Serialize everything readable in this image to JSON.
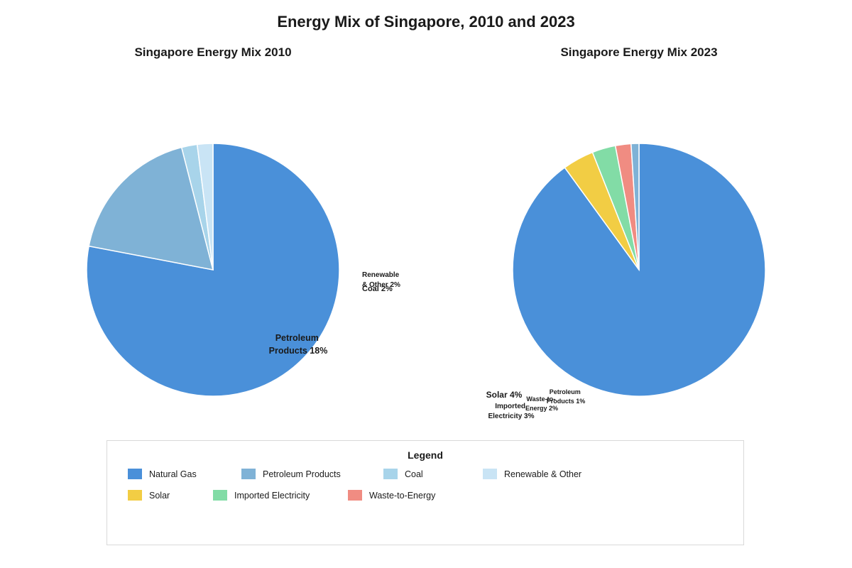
{
  "title": "Energy Mix of Singapore, 2010 and 2023",
  "chart_data": [
    {
      "type": "pie",
      "title": "Singapore Energy Mix 2010",
      "slices": [
        {
          "label": "Natural Gas",
          "value": 78,
          "color": "#4a90d9",
          "label_text": ""
        },
        {
          "label": "Petroleum Products",
          "value": 18,
          "color": "#7fb2d6",
          "label_text": "Petroleum Products 18%"
        },
        {
          "label": "Coal",
          "value": 2,
          "color": "#a8d4ea",
          "label_text": "Coal 2%"
        },
        {
          "label": "Renewable & Other",
          "value": 2,
          "color": "#c9e4f5",
          "label_text": "Renewable & Other 2%"
        }
      ]
    },
    {
      "type": "pie",
      "title": "Singapore Energy Mix 2023",
      "slices": [
        {
          "label": "Natural Gas",
          "value": 90,
          "color": "#4a90d9",
          "label_text": ""
        },
        {
          "label": "Solar",
          "value": 4,
          "color": "#f2cd44",
          "label_text": "Solar 4%"
        },
        {
          "label": "Imported Electricity",
          "value": 3,
          "color": "#82dca6",
          "label_text": "Imported Electricity 3%"
        },
        {
          "label": "Waste-to-Energy",
          "value": 2,
          "color": "#f08c82",
          "label_text": "Waste-to-Energy 2%"
        },
        {
          "label": "Petroleum Products",
          "value": 1,
          "color": "#7fb2d6",
          "label_text": "Petroleum Products 1%"
        }
      ]
    }
  ],
  "legend": {
    "title": "Legend",
    "items": [
      {
        "label": "Natural Gas",
        "color": "#4a90d9"
      },
      {
        "label": "Petroleum Products",
        "color": "#7fb2d6"
      },
      {
        "label": "Coal",
        "color": "#a8d4ea"
      },
      {
        "label": "Renewable & Other",
        "color": "#c9e4f5"
      },
      {
        "label": "Solar",
        "color": "#f2cd44"
      },
      {
        "label": "Imported Electricity",
        "color": "#82dca6"
      },
      {
        "label": "Waste-to-Energy",
        "color": "#f08c82"
      }
    ]
  }
}
